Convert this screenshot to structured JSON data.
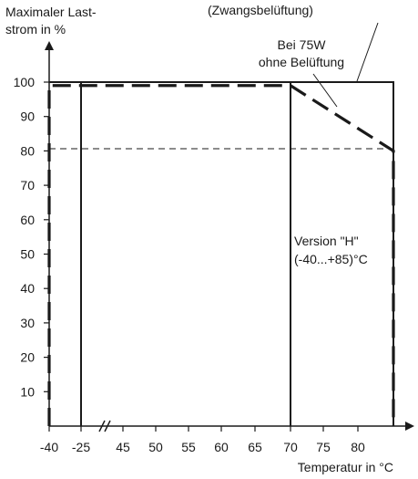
{
  "chart_data": {
    "type": "line",
    "ylabel": [
      "Maximaler Last-",
      "strom in %"
    ],
    "xlabel": "Temperatur in °C",
    "top_annotation": "(Zwangsbelüftung)",
    "annotation_75w": [
      "Bei 75W",
      "ohne Belüftung"
    ],
    "annotation_version": [
      "Version \"H\"",
      "(-40...+85)°C"
    ],
    "yticks": [
      10,
      20,
      30,
      40,
      50,
      60,
      70,
      80,
      90,
      100
    ],
    "xticks": [
      "-40",
      "-25",
      "45",
      "50",
      "55",
      "60",
      "65",
      "70",
      "75",
      "80"
    ],
    "ylim": [
      0,
      100
    ],
    "axis_break_between": [
      "-25",
      "45"
    ],
    "series": [
      {
        "style": "solid",
        "x": [
          "-25",
          "-25",
          "70",
          "70"
        ],
        "y": [
          0,
          100,
          100,
          0
        ]
      },
      {
        "style": "solid",
        "x": [
          "-40",
          "85",
          "85"
        ],
        "y": [
          100,
          100,
          0
        ]
      },
      {
        "style": "dashed",
        "x": [
          "-40",
          "-40",
          "70",
          "85",
          "85"
        ],
        "y": [
          0,
          99,
          99,
          80,
          0
        ]
      }
    ],
    "reference_line": {
      "y": 80,
      "style": "thin-dashed"
    },
    "colors": {
      "line": "#1a1a1a"
    }
  }
}
